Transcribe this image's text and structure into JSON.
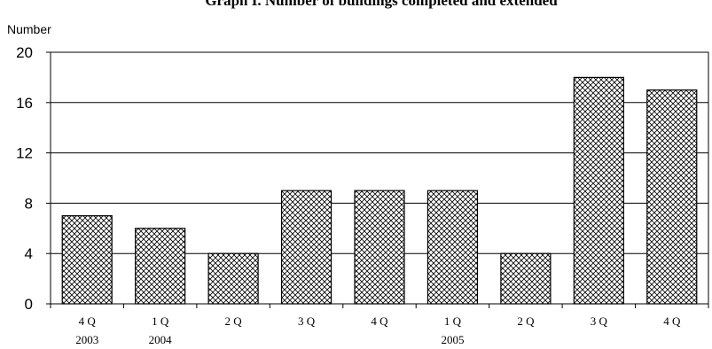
{
  "chart_data": {
    "type": "bar",
    "title": "Graph I. Number of buildings completed and extended",
    "ylabel": "Number",
    "xlabel": "",
    "ylim": [
      0,
      20
    ],
    "yticks": [
      0,
      4,
      8,
      12,
      16,
      20
    ],
    "categories": [
      "4 Q",
      "1 Q",
      "2 Q",
      "3 Q",
      "4 Q",
      "1 Q",
      "2 Q",
      "3 Q",
      "4 Q"
    ],
    "years": [
      "2003",
      "2004",
      "",
      "",
      "",
      "2005",
      "",
      "",
      ""
    ],
    "values": [
      7,
      6,
      4,
      9,
      9,
      9,
      4,
      18,
      17
    ],
    "grid": true,
    "legend": "none",
    "colors": {
      "bar_fill_bg": "#ffffff",
      "bar_pattern": "#000000",
      "bar_stroke": "#000000",
      "grid": "#000000"
    }
  }
}
